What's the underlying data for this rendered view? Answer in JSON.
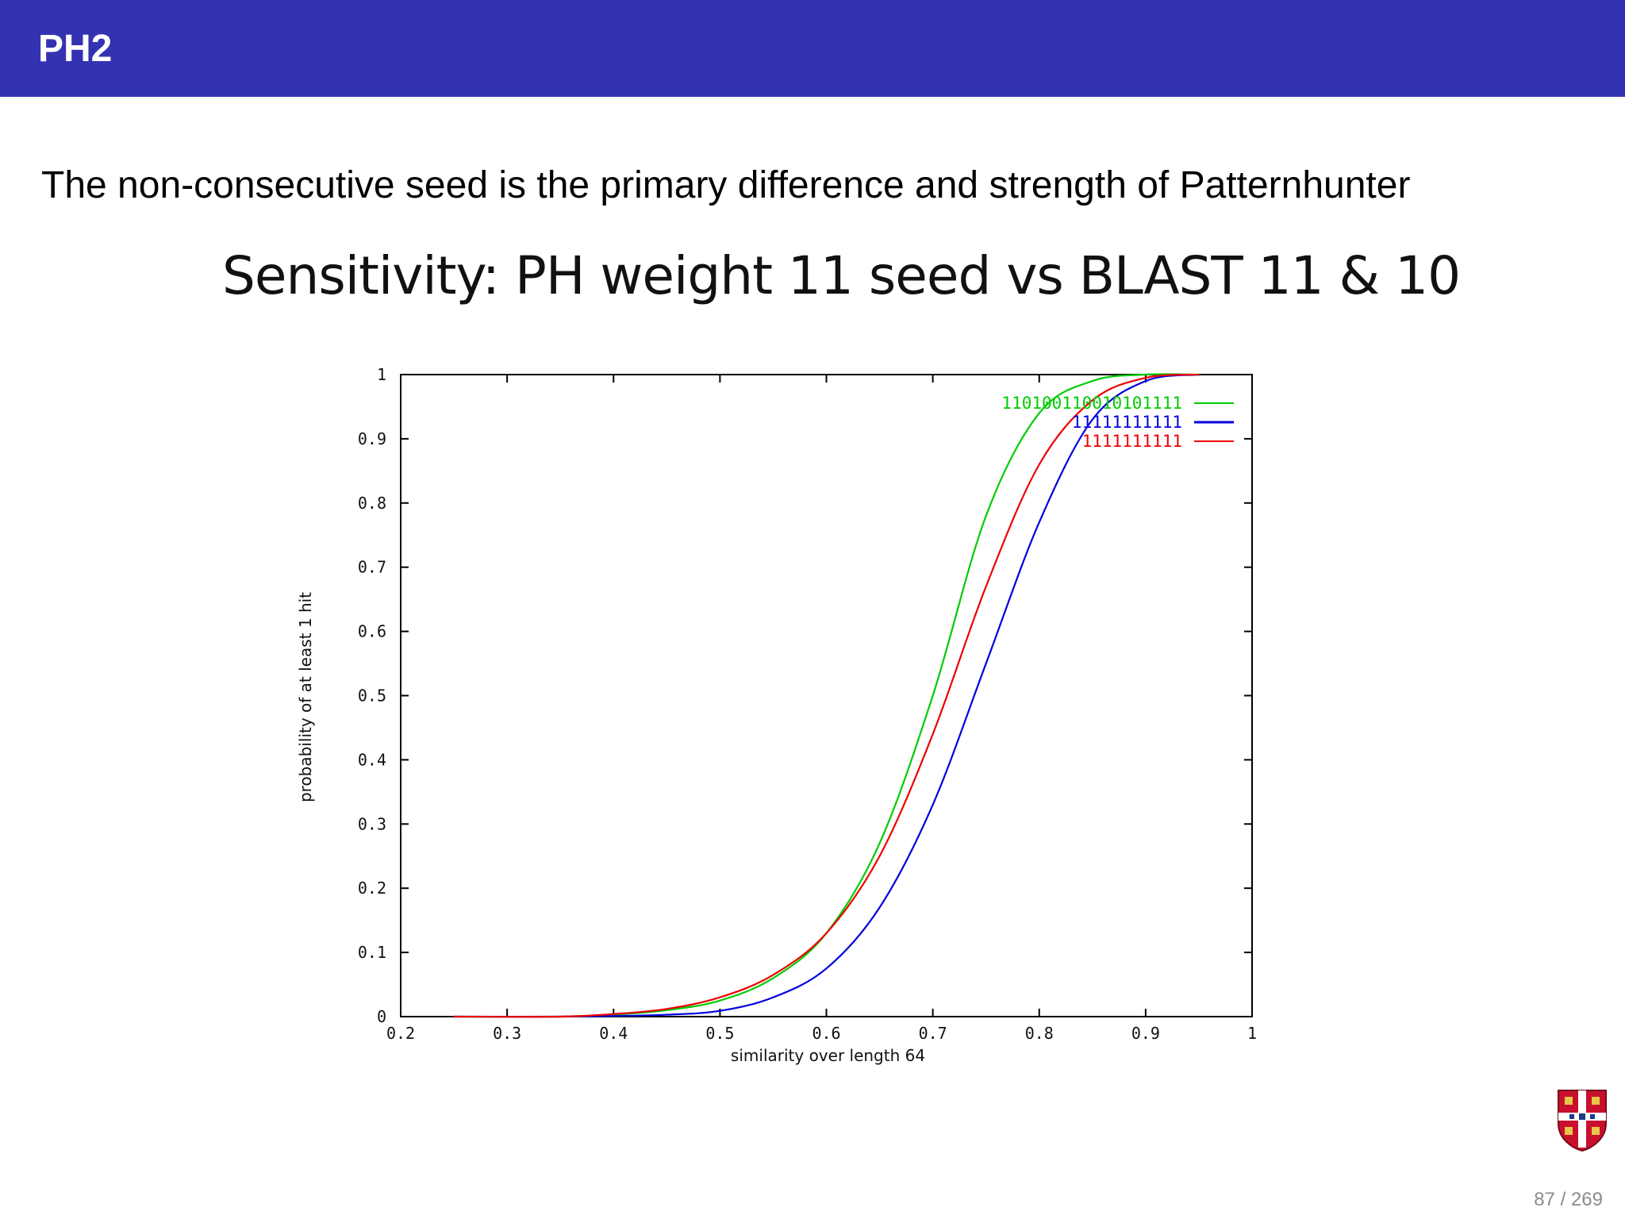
{
  "frame_title": "PH2",
  "lead_text": "The non-consecutive seed is the primary difference and strength of Patternhunter",
  "chart_heading": "Sensitivity: PH weight 11 seed vs BLAST 11 & 10",
  "page_counter": "87 / 269",
  "chart_data": {
    "type": "line",
    "title": "Sensitivity: PH weight 11 seed vs BLAST 11 & 10",
    "xlabel": "similarity over length 64",
    "ylabel": "probability of at least 1 hit",
    "xlim": [
      0.2,
      1
    ],
    "ylim": [
      0,
      1
    ],
    "xticks": [
      "0.2",
      "0.3",
      "0.4",
      "0.5",
      "0.6",
      "0.7",
      "0.8",
      "0.9",
      "1"
    ],
    "yticks": [
      "0",
      "0.1",
      "0.2",
      "0.3",
      "0.4",
      "0.5",
      "0.6",
      "0.7",
      "0.8",
      "0.9",
      "1"
    ],
    "grid": false,
    "legend_position": "top-right",
    "series": [
      {
        "name": "110100110010101111",
        "color": "#00cc00",
        "x": [
          0.25,
          0.35,
          0.4,
          0.45,
          0.5,
          0.55,
          0.6,
          0.65,
          0.7,
          0.75,
          0.8,
          0.85,
          0.9,
          0.95
        ],
        "y": [
          0.0,
          0.0,
          0.003,
          0.01,
          0.025,
          0.06,
          0.13,
          0.27,
          0.5,
          0.78,
          0.94,
          0.99,
          1.0,
          1.0
        ]
      },
      {
        "name": "11111111111",
        "color": "#0000dd",
        "x": [
          0.25,
          0.35,
          0.4,
          0.45,
          0.5,
          0.55,
          0.6,
          0.65,
          0.7,
          0.75,
          0.8,
          0.85,
          0.9,
          0.95
        ],
        "y": [
          0.0,
          0.0,
          0.001,
          0.003,
          0.009,
          0.03,
          0.075,
          0.17,
          0.33,
          0.55,
          0.77,
          0.93,
          0.99,
          1.0
        ]
      },
      {
        "name": "1111111111",
        "color": "#ee0000",
        "x": [
          0.25,
          0.35,
          0.4,
          0.45,
          0.5,
          0.55,
          0.6,
          0.65,
          0.7,
          0.75,
          0.8,
          0.85,
          0.9,
          0.95
        ],
        "y": [
          0.0,
          0.0,
          0.004,
          0.012,
          0.03,
          0.065,
          0.13,
          0.25,
          0.44,
          0.67,
          0.86,
          0.96,
          0.995,
          1.0
        ]
      }
    ]
  },
  "colors": {
    "header_bar": "#3333b2",
    "page_counter": "#8c8c8c"
  }
}
